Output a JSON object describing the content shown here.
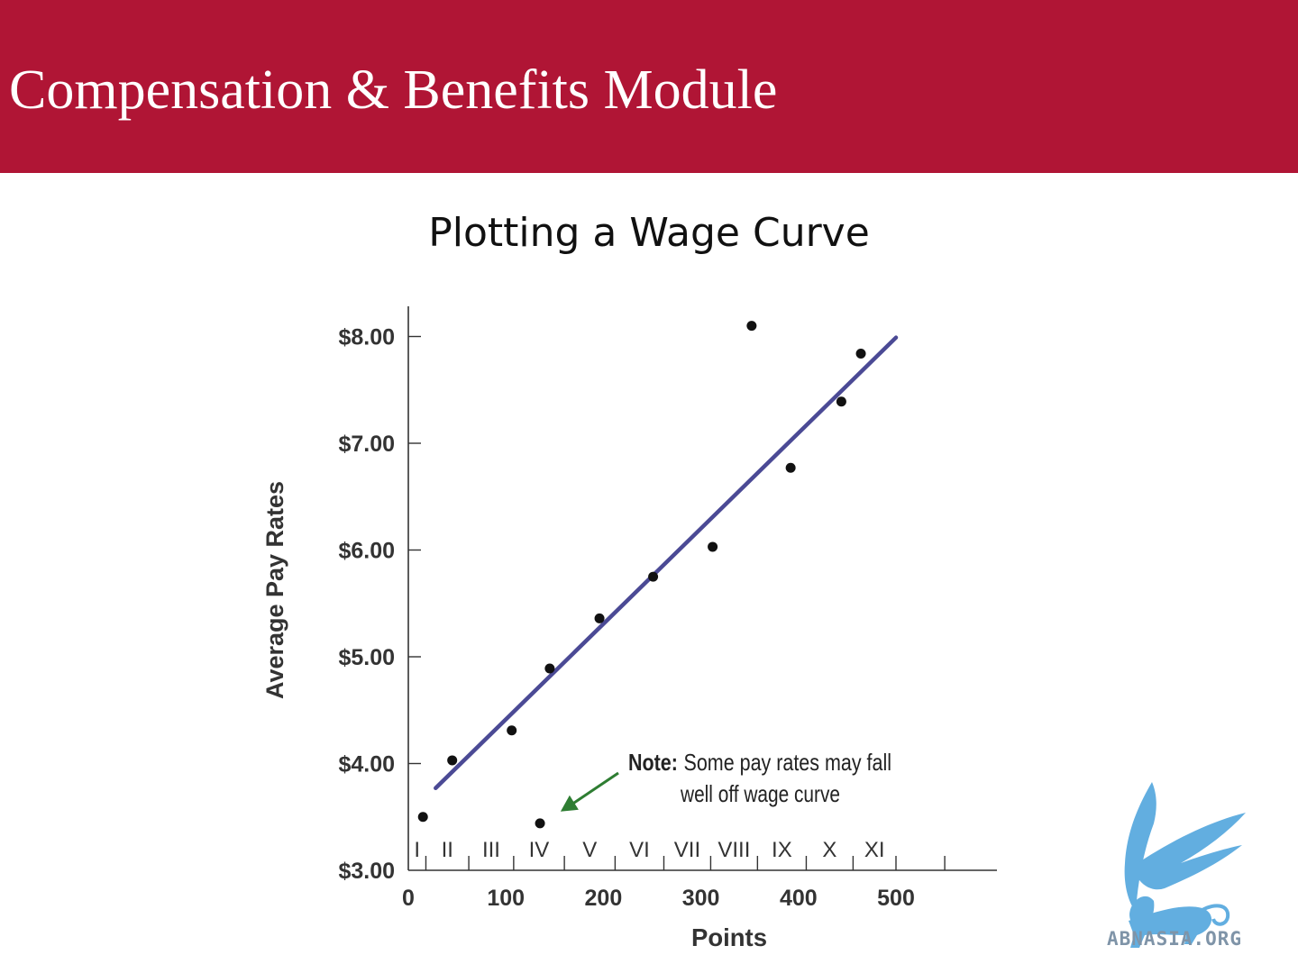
{
  "header": {
    "title": "Compensation & Benefits Module",
    "background_color": "#b01535"
  },
  "slide": {
    "title": "Plotting a Wage Curve"
  },
  "chart_data": {
    "type": "scatter",
    "xlabel": "Points",
    "ylabel": "Average Pay Rates",
    "xlim": [
      0,
      600
    ],
    "ylim": [
      3.0,
      8.2
    ],
    "x_ticks": [
      0,
      100,
      200,
      300,
      400,
      500
    ],
    "x_tick_labels": [
      "0",
      "100",
      "200",
      "300",
      "400",
      "500"
    ],
    "y_ticks": [
      3,
      4,
      5,
      6,
      7,
      8
    ],
    "y_tick_labels": [
      "$3.00",
      "$4.00",
      "$5.00",
      "$6.00",
      "$7.00",
      "$8.00"
    ],
    "grid": false,
    "legend": "none",
    "points": [
      {
        "x": 15,
        "y": 3.5
      },
      {
        "x": 45,
        "y": 4.03
      },
      {
        "x": 106,
        "y": 4.31
      },
      {
        "x": 145,
        "y": 4.89
      },
      {
        "x": 196,
        "y": 5.36
      },
      {
        "x": 251,
        "y": 5.75
      },
      {
        "x": 312,
        "y": 6.03
      },
      {
        "x": 352,
        "y": 8.1
      },
      {
        "x": 392,
        "y": 6.77
      },
      {
        "x": 444,
        "y": 7.39
      },
      {
        "x": 464,
        "y": 7.84
      },
      {
        "x": 135,
        "y": 3.44
      }
    ],
    "trend_line": {
      "x": [
        28,
        500
      ],
      "y": [
        3.77,
        7.99
      ],
      "color": "#4b4a95"
    },
    "pay_grades": {
      "labels": [
        "I",
        "II",
        "III",
        "IV",
        "V",
        "VI",
        "VII",
        "VIII",
        "IX",
        "X",
        "XI"
      ],
      "boundaries": [
        0,
        18,
        62,
        108,
        160,
        212,
        262,
        310,
        358,
        408,
        456,
        500,
        550
      ]
    },
    "annotation": {
      "bold_text": "Note:",
      "line1": "Some pay rates may fall",
      "line2": "well off wage curve",
      "arrow_color": "#2e7d32",
      "points_to": {
        "x": 145,
        "y": 3.5
      }
    }
  },
  "logo": {
    "text": "ABNASIA.ORG",
    "icon": "griffin-logo-icon",
    "color": "#62aee0"
  }
}
